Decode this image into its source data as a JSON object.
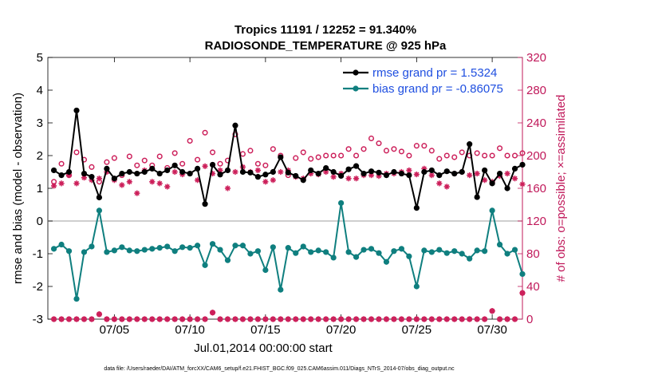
{
  "chart_data": {
    "type": "line",
    "title": "Tropics 11191 / 12252 = 91.340%",
    "subtitle": "RADIOSONDE_TEMPERATURE @ 925 hPa",
    "xlabel": "Jul.01,2014 00:00:00 start",
    "ylabel_left": "rmse and bias (model - observation)",
    "ylabel_right": "# of obs: o=possible; ×=assimilated",
    "footer": "data file: /Users/raeder/DAI/ATM_forcXX/CAM6_setup/f.e21.FHIST_BGC.f09_025.CAM6assim.011/Diags_NTrS_2014-07/obs_diag_output.nc",
    "xlim": [
      0.6,
      32.0
    ],
    "ylim_left": [
      -3,
      5
    ],
    "ylim_right": [
      0,
      320
    ],
    "x_ticks": [
      5,
      10,
      15,
      20,
      25,
      30
    ],
    "x_tick_labels": [
      "07/05",
      "07/10",
      "07/15",
      "07/20",
      "07/25",
      "07/30"
    ],
    "y_ticks_left": [
      -3,
      -2,
      -1,
      0,
      1,
      2,
      3,
      4,
      5
    ],
    "y_ticks_right": [
      0,
      40,
      80,
      120,
      160,
      200,
      240,
      280,
      320
    ],
    "grid": false,
    "legend_position": "top-right",
    "colors": {
      "rmse": "#000000",
      "bias": "#0f7f7f",
      "obs": "#cc1f5a",
      "right_axis": "#c0185a",
      "legend_text": "#1f4fe0",
      "zero_line": "#bfbfbf"
    },
    "x": [
      1.0,
      1.5,
      2.0,
      2.5,
      3.0,
      3.5,
      4.0,
      4.5,
      5.0,
      5.5,
      6.0,
      6.5,
      7.0,
      7.5,
      8.0,
      8.5,
      9.0,
      9.5,
      10.0,
      10.5,
      11.0,
      11.5,
      12.0,
      12.5,
      13.0,
      13.5,
      14.0,
      14.5,
      15.0,
      15.5,
      16.0,
      16.5,
      17.0,
      17.5,
      18.0,
      18.5,
      19.0,
      19.5,
      20.0,
      20.5,
      21.0,
      21.5,
      22.0,
      22.5,
      23.0,
      23.5,
      24.0,
      24.5,
      25.0,
      25.5,
      26.0,
      26.5,
      27.0,
      27.5,
      28.0,
      28.5,
      29.0,
      29.5,
      30.0,
      30.5,
      31.0,
      31.5,
      32.0
    ],
    "series": [
      {
        "name": "rmse grand pr = 1.5324",
        "marker": "filled-circle",
        "values": [
          1.55,
          1.4,
          1.5,
          3.38,
          1.45,
          1.35,
          0.72,
          1.6,
          1.3,
          1.45,
          1.5,
          1.45,
          1.5,
          1.6,
          1.45,
          1.55,
          1.7,
          1.5,
          1.45,
          1.6,
          0.52,
          1.72,
          1.42,
          1.55,
          2.92,
          1.5,
          1.48,
          1.35,
          1.42,
          1.5,
          1.95,
          1.48,
          1.38,
          1.25,
          1.55,
          1.45,
          1.62,
          1.5,
          1.38,
          1.58,
          1.68,
          1.45,
          1.52,
          1.48,
          1.4,
          1.5,
          1.45,
          1.4,
          0.4,
          1.5,
          1.55,
          1.4,
          1.52,
          1.45,
          1.5,
          2.35,
          0.73,
          1.55,
          1.15,
          1.45,
          1.0,
          1.6,
          1.72
        ]
      },
      {
        "name": "bias grand pr = -0.86075",
        "marker": "filled-circle",
        "values": [
          -0.85,
          -0.72,
          -0.92,
          -2.38,
          -0.95,
          -0.78,
          0.32,
          -0.95,
          -0.9,
          -0.8,
          -0.9,
          -0.92,
          -0.88,
          -0.85,
          -0.82,
          -0.78,
          -0.92,
          -0.8,
          -0.82,
          -0.75,
          -1.35,
          -0.7,
          -0.88,
          -1.2,
          -0.75,
          -0.75,
          -1.0,
          -0.92,
          -1.5,
          -0.8,
          -2.1,
          -0.82,
          -0.98,
          -0.78,
          -0.95,
          -0.9,
          -0.95,
          -1.12,
          0.55,
          -0.95,
          -1.1,
          -0.88,
          -0.85,
          -0.98,
          -1.25,
          -0.92,
          -0.85,
          -1.08,
          -2.0,
          -0.9,
          -0.95,
          -0.88,
          -0.98,
          -0.92,
          -1.0,
          -1.15,
          -0.9,
          -0.92,
          0.32,
          -0.72,
          -1.0,
          -0.88,
          -1.62
        ]
      },
      {
        "name": "possible obs (o)",
        "marker": "open-circle",
        "axis": "right",
        "values": [
          168,
          190,
          176,
          204,
          195,
          186,
          168,
          192,
          197,
          176,
          199,
          188,
          194,
          188,
          199,
          185,
          203,
          190,
          218,
          195,
          228,
          204,
          190,
          194,
          226,
          202,
          206,
          190,
          188,
          208,
          200,
          176,
          197,
          204,
          196,
          198,
          200,
          200,
          200,
          208,
          200,
          208,
          221,
          215,
          206,
          208,
          205,
          200,
          212,
          212,
          206,
          196,
          200,
          198,
          204,
          200,
          203,
          200,
          200,
          209,
          200,
          200,
          203
        ]
      },
      {
        "name": "assimilated obs (×)",
        "marker": "asterisk",
        "axis": "right",
        "values": [
          163,
          166,
          176,
          166,
          173,
          170,
          172,
          180,
          170,
          164,
          168,
          154,
          182,
          168,
          166,
          162,
          180,
          177,
          178,
          170,
          187,
          178,
          182,
          160,
          180,
          186,
          180,
          182,
          168,
          170,
          180,
          182,
          174,
          172,
          178,
          177,
          180,
          174,
          178,
          172,
          172,
          176,
          176,
          175,
          178,
          178,
          180,
          182,
          177,
          184,
          176,
          166,
          162,
          178,
          180,
          176,
          178,
          170,
          168,
          175,
          178,
          172,
          165
        ]
      },
      {
        "name": "possible obs bottom (o)",
        "marker": "open-circle",
        "axis": "right",
        "values": [
          0,
          0,
          0,
          0,
          0,
          0,
          6,
          0,
          0,
          0,
          0,
          0,
          0,
          0,
          0,
          0,
          0,
          0,
          0,
          0,
          0,
          8,
          0,
          0,
          0,
          0,
          0,
          0,
          0,
          0,
          0,
          0,
          0,
          0,
          0,
          0,
          0,
          0,
          0,
          0,
          0,
          0,
          0,
          0,
          0,
          0,
          0,
          0,
          0,
          0,
          0,
          0,
          0,
          0,
          0,
          0,
          0,
          0,
          10,
          0,
          0,
          0,
          32
        ]
      },
      {
        "name": "assimilated obs bottom (×)",
        "marker": "asterisk",
        "axis": "right",
        "values": [
          0,
          0,
          0,
          0,
          0,
          0,
          6,
          0,
          0,
          0,
          0,
          0,
          0,
          0,
          0,
          0,
          0,
          0,
          0,
          0,
          0,
          8,
          0,
          0,
          0,
          0,
          0,
          0,
          0,
          0,
          0,
          0,
          0,
          0,
          0,
          0,
          0,
          0,
          0,
          0,
          0,
          0,
          0,
          0,
          0,
          0,
          0,
          0,
          0,
          0,
          0,
          0,
          0,
          0,
          0,
          0,
          0,
          0,
          10,
          0,
          0,
          0,
          32
        ]
      }
    ]
  }
}
